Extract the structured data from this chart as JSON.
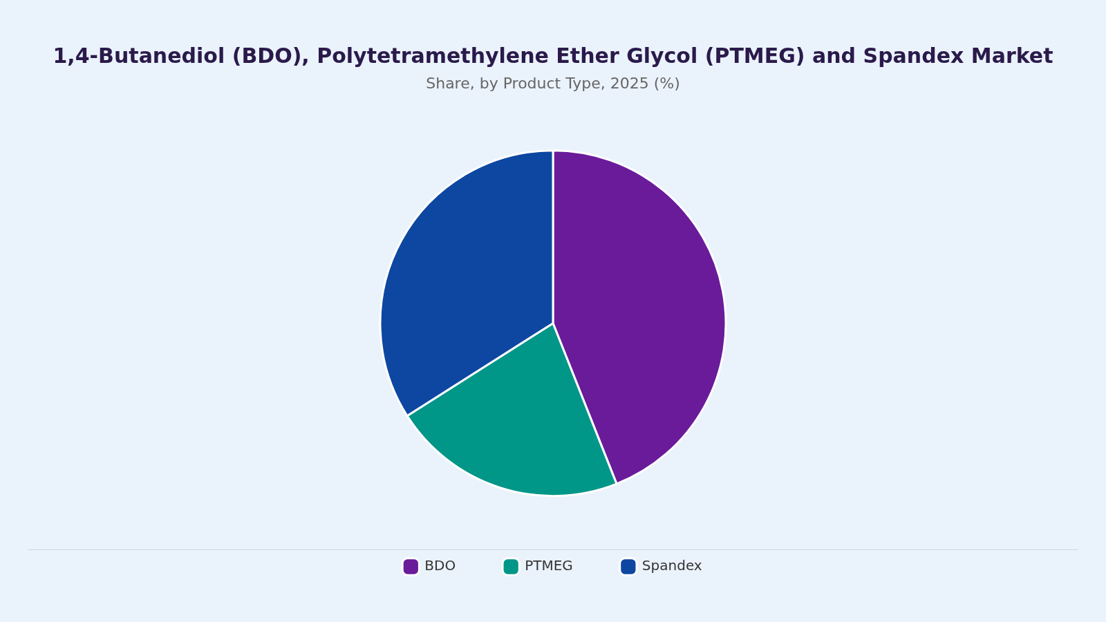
{
  "chart_data": {
    "type": "pie",
    "title": "1,4-Butanediol (BDO), Polytetramethylene Ether Glycol (PTMEG) and Spandex Market",
    "subtitle": "Share, by Product Type, 2025 (%)",
    "categories": [
      "BDO",
      "PTMEG",
      "Spandex"
    ],
    "values": [
      44,
      22,
      34
    ],
    "colors": [
      "#6a1b9a",
      "#009688",
      "#0d47a1"
    ],
    "legend": "bottom"
  }
}
